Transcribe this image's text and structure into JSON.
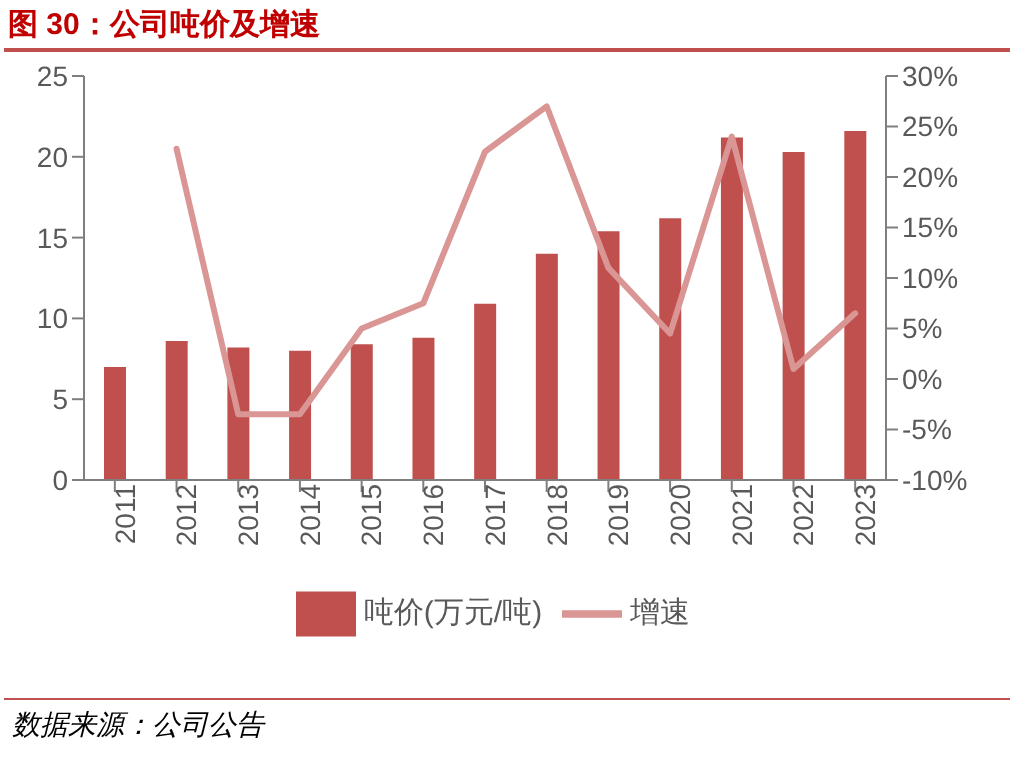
{
  "chart_data": {
    "type": "bar",
    "title": "图 30：公司吨价及增速",
    "categories": [
      "2011",
      "2012",
      "2013",
      "2014",
      "2015",
      "2016",
      "2017",
      "2018",
      "2019",
      "2020",
      "2021",
      "2022",
      "2023"
    ],
    "series": [
      {
        "name": "吨价(万元/吨)",
        "color": "#c0504d",
        "values": [
          7.0,
          8.6,
          8.2,
          8.0,
          8.4,
          8.8,
          10.9,
          14.0,
          15.4,
          16.2,
          21.2,
          20.3,
          21.6
        ]
      },
      {
        "name": "增速",
        "type": "line",
        "axis": "y2",
        "color": "#da9694",
        "values": [
          null,
          22.8,
          -3.5,
          -3.5,
          5.0,
          7.5,
          22.5,
          27.0,
          11.0,
          4.5,
          24.0,
          1.0,
          6.5
        ]
      }
    ],
    "ylim": [
      0,
      25
    ],
    "yticks": [
      0,
      5,
      10,
      15,
      20,
      25
    ],
    "y2lim": [
      -10,
      30
    ],
    "y2ticks": [
      {
        "value": -10,
        "label": "-10%"
      },
      {
        "value": -5,
        "label": "-5%"
      },
      {
        "value": 0,
        "label": "0%"
      },
      {
        "value": 5,
        "label": "5%"
      },
      {
        "value": 10,
        "label": "10%"
      },
      {
        "value": 15,
        "label": "15%"
      },
      {
        "value": 20,
        "label": "20%"
      },
      {
        "value": 25,
        "label": "25%"
      },
      {
        "value": 30,
        "label": "30%"
      }
    ],
    "grid": false,
    "legend": "bottom",
    "marker": "none",
    "annotations": [
      "数据来源：公司公告"
    ]
  }
}
